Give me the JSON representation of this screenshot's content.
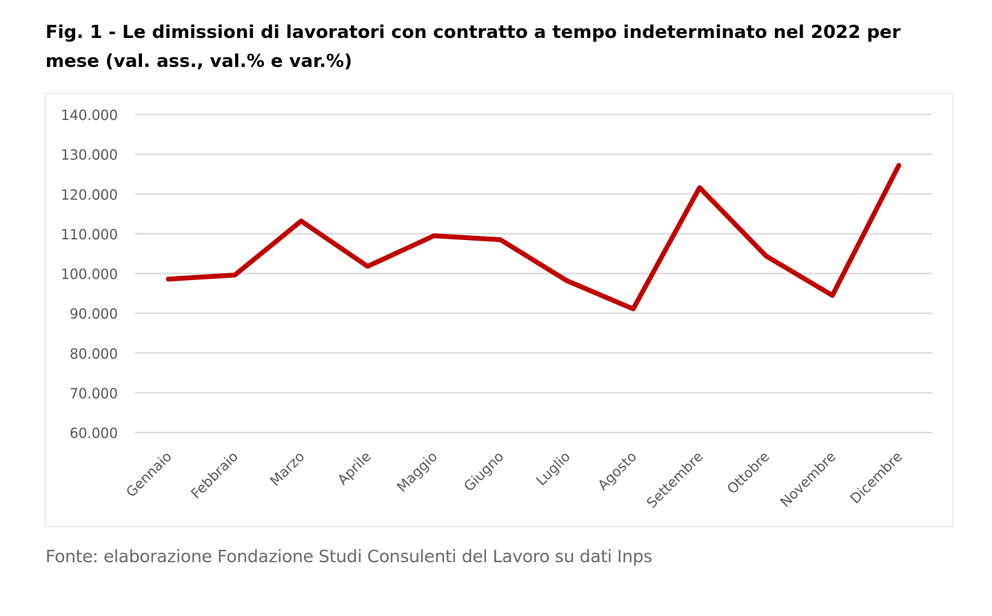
{
  "figure": {
    "title": "Fig. 1 - Le dimissioni di lavoratori con contratto a tempo indeterminato nel 2022 per mese (val. ass., val.% e var.%)",
    "source": "Fonte: elaborazione Fondazione Studi Consulenti del Lavoro su dati Inps"
  },
  "chart_data": {
    "type": "line",
    "title": "",
    "xlabel": "",
    "ylabel": "",
    "categories": [
      "Gennaio",
      "Febbraio",
      "Marzo",
      "Aprile",
      "Maggio",
      "Giugno",
      "Luglio",
      "Agosto",
      "Settembre",
      "Ottobre",
      "Novembre",
      "Dicembre"
    ],
    "series": [
      {
        "values": [
          98600,
          99600,
          113200,
          101800,
          109500,
          108500,
          98200,
          91100,
          121600,
          104400,
          94500,
          127200
        ],
        "color": "#c00000"
      }
    ],
    "ylim": [
      60000,
      140000
    ],
    "yticks": [
      60000,
      70000,
      80000,
      90000,
      100000,
      110000,
      120000,
      130000,
      140000
    ],
    "ytick_labels": [
      "60.000",
      "70.000",
      "80.000",
      "90.000",
      "100.000",
      "110.000",
      "120.000",
      "130.000",
      "140.000"
    ],
    "grid": true,
    "legend": "none",
    "gridline_color": "#d9d9d9",
    "axis_text_color": "#595959"
  }
}
